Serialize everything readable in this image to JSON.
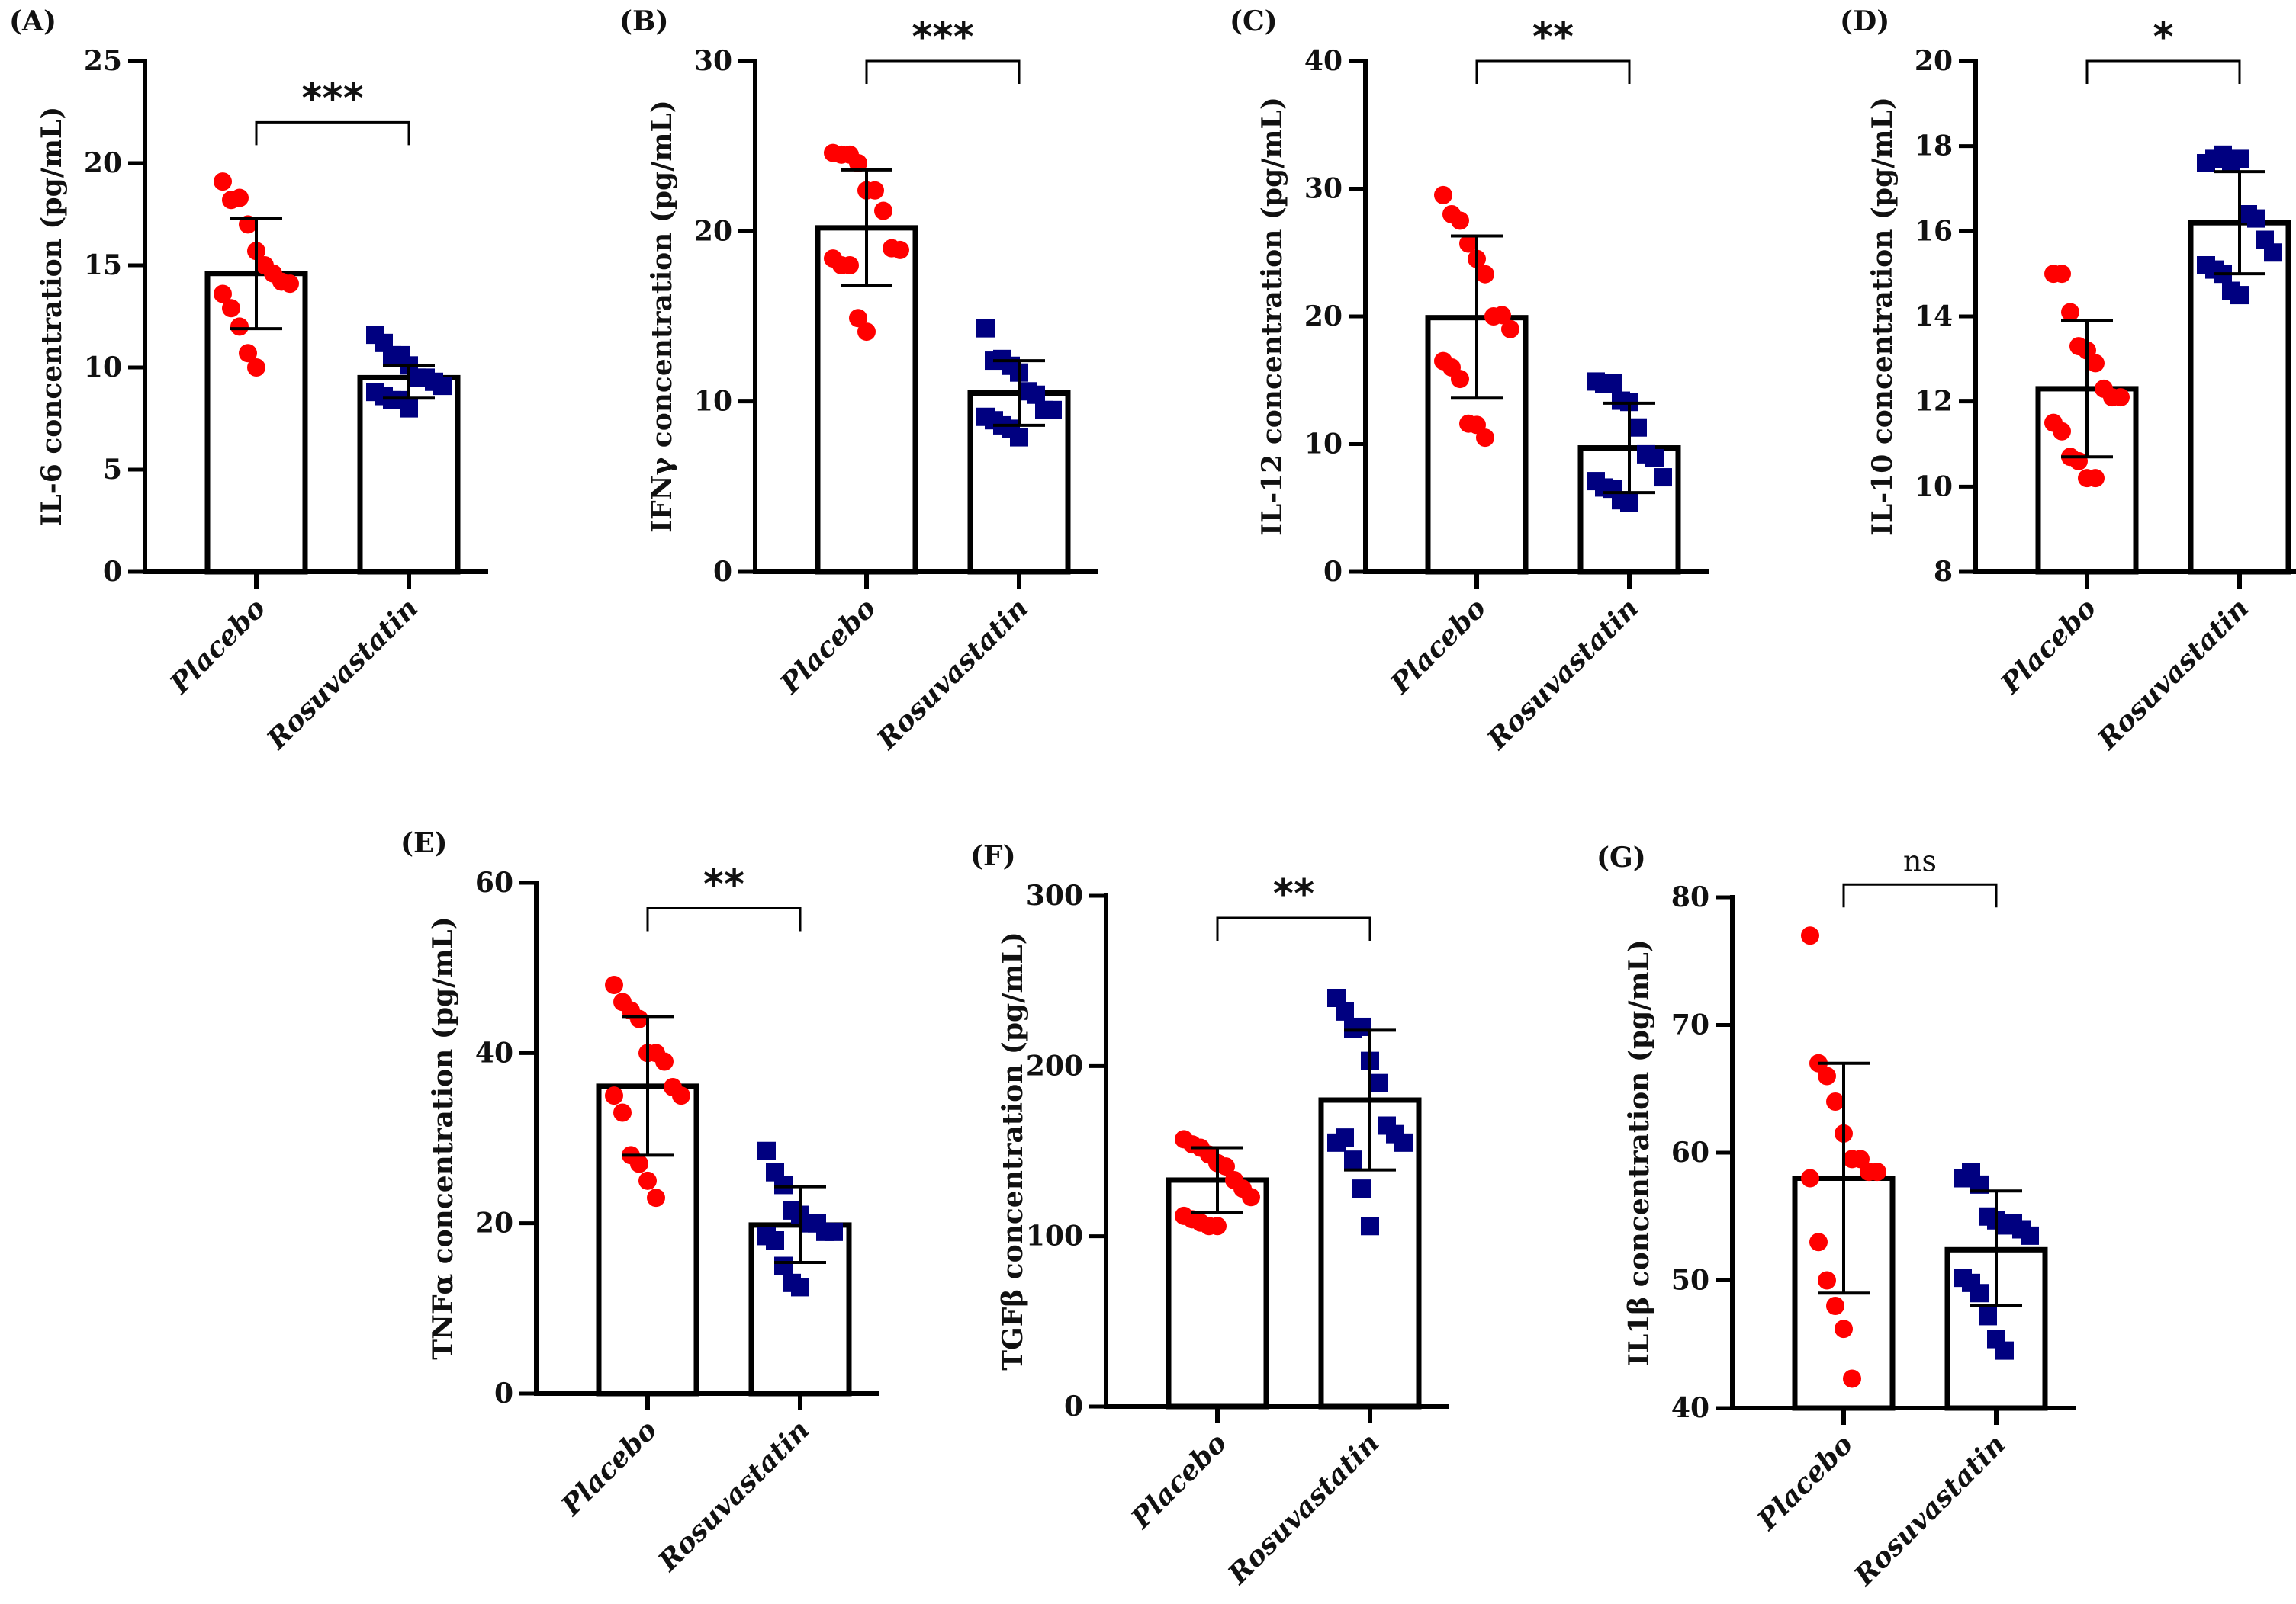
{
  "colors": {
    "placebo": "#ff0000",
    "rosuvastatin": "#000080",
    "axis": "#000000"
  },
  "chart_data": [
    {
      "type": "bar",
      "panel": "(A)",
      "ylabel": "IL-6 concentration (pg/mL)",
      "categories": [
        "Placebo",
        "Rosuvastatin"
      ],
      "ylim": [
        0,
        25
      ],
      "yticks": [
        "0",
        "5",
        "10",
        "15",
        "20",
        "25"
      ],
      "significance": "***",
      "series": [
        {
          "name": "Placebo",
          "mean": 14.6,
          "sd_low": 11.9,
          "sd_high": 17.3,
          "points": [
            19.1,
            18.2,
            18.3,
            17.0,
            15.7,
            15.0,
            14.6,
            14.2,
            14.1,
            13.6,
            12.9,
            12.0,
            10.7,
            10.0
          ]
        },
        {
          "name": "Rosuvastatin",
          "mean": 9.5,
          "sd_low": 8.5,
          "sd_high": 10.1,
          "points": [
            11.6,
            11.2,
            10.6,
            10.6,
            10.1,
            9.5,
            9.5,
            9.3,
            9.1,
            8.8,
            8.6,
            8.4,
            8.4,
            8.0
          ]
        }
      ]
    },
    {
      "type": "bar",
      "panel": "(B)",
      "ylabel": "IFNγ concentration (pg/mL)",
      "categories": [
        "Placebo",
        "Rosuvastatin"
      ],
      "ylim": [
        0,
        30
      ],
      "yticks": [
        "0",
        "10",
        "20",
        "30"
      ],
      "significance": "***",
      "series": [
        {
          "name": "Placebo",
          "mean": 20.2,
          "sd_low": 16.8,
          "sd_high": 23.6,
          "points": [
            24.6,
            24.5,
            24.5,
            24.0,
            22.4,
            22.4,
            21.2,
            19.0,
            18.9,
            18.4,
            18.0,
            18.0,
            14.9,
            14.1
          ]
        },
        {
          "name": "Rosuvastatin",
          "mean": 10.5,
          "sd_low": 8.6,
          "sd_high": 12.4,
          "points": [
            14.3,
            12.4,
            12.5,
            12.1,
            11.7,
            10.6,
            10.4,
            9.5,
            9.5,
            9.1,
            8.9,
            8.6,
            8.4,
            7.9
          ]
        }
      ]
    },
    {
      "type": "bar",
      "panel": "(C)",
      "ylabel": "IL-12 concentration (pg/mL)",
      "categories": [
        "Placebo",
        "Rosuvastatin"
      ],
      "ylim": [
        0,
        40
      ],
      "yticks": [
        "0",
        "10",
        "20",
        "30",
        "40"
      ],
      "significance": "**",
      "series": [
        {
          "name": "Placebo",
          "mean": 19.9,
          "sd_low": 13.6,
          "sd_high": 26.3,
          "points": [
            29.5,
            28.0,
            27.5,
            25.7,
            24.5,
            23.3,
            20.0,
            20.1,
            19.0,
            16.5,
            16.0,
            15.1,
            11.6,
            11.5,
            10.5
          ]
        },
        {
          "name": "Rosuvastatin",
          "mean": 9.7,
          "sd_low": 6.2,
          "sd_high": 13.2,
          "points": [
            14.9,
            14.7,
            14.8,
            13.4,
            13.3,
            11.3,
            9.2,
            8.9,
            7.4,
            7.1,
            6.6,
            6.5,
            5.6,
            5.4
          ]
        }
      ]
    },
    {
      "type": "bar",
      "panel": "(D)",
      "ylabel": "IL-10 concentration (pg/mL)",
      "categories": [
        "Placebo",
        "Rosuvastatin"
      ],
      "ylim": [
        8,
        20
      ],
      "yticks": [
        "8",
        "10",
        "12",
        "14",
        "16",
        "18",
        "20"
      ],
      "significance": "*",
      "series": [
        {
          "name": "Placebo",
          "mean": 12.3,
          "sd_low": 10.7,
          "sd_high": 13.9,
          "points": [
            15.0,
            15.0,
            14.1,
            13.3,
            13.2,
            12.9,
            12.3,
            12.1,
            12.1,
            11.5,
            11.3,
            10.7,
            10.6,
            10.2,
            10.2
          ]
        },
        {
          "name": "Rosuvastatin",
          "mean": 16.2,
          "sd_low": 15.0,
          "sd_high": 17.4,
          "points": [
            17.6,
            17.7,
            17.8,
            17.6,
            17.7,
            16.4,
            16.3,
            15.8,
            15.5,
            15.2,
            15.1,
            15.0,
            14.6,
            14.5
          ]
        }
      ]
    },
    {
      "type": "bar",
      "panel": "(E)",
      "ylabel": "TNFα concentration (pg/mL)",
      "categories": [
        "Placebo",
        "Rosuvastatin"
      ],
      "ylim": [
        0,
        60
      ],
      "yticks": [
        "0",
        "20",
        "40",
        "60"
      ],
      "significance": "**",
      "series": [
        {
          "name": "Placebo",
          "mean": 36.1,
          "sd_low": 28.0,
          "sd_high": 44.3,
          "points": [
            48,
            46,
            45,
            44,
            40,
            40,
            39,
            36,
            35,
            35,
            33,
            28,
            27,
            25,
            23
          ]
        },
        {
          "name": "Rosuvastatin",
          "mean": 19.8,
          "sd_low": 15.4,
          "sd_high": 24.3,
          "points": [
            28.5,
            26,
            24.5,
            21.5,
            21,
            20,
            20,
            19,
            19,
            18.5,
            18,
            15,
            13,
            12.5
          ]
        }
      ]
    },
    {
      "type": "bar",
      "panel": "(F)",
      "ylabel": "TGFβ concentration (pg/mL)",
      "categories": [
        "Placebo",
        "Rosuvastatin"
      ],
      "ylim": [
        0,
        300
      ],
      "yticks": [
        "0",
        "100",
        "200",
        "300"
      ],
      "significance": "**",
      "series": [
        {
          "name": "Placebo",
          "mean": 133,
          "sd_low": 114,
          "sd_high": 152,
          "points": [
            157,
            154,
            152,
            148,
            143,
            141,
            133,
            128,
            123,
            112,
            110,
            108,
            106,
            106
          ]
        },
        {
          "name": "Rosuvastatin",
          "mean": 180,
          "sd_low": 139,
          "sd_high": 221,
          "points": [
            240,
            232,
            222,
            223,
            203,
            190,
            165,
            160,
            155,
            155,
            158,
            145,
            128,
            106
          ]
        }
      ]
    },
    {
      "type": "bar",
      "panel": "(G)",
      "ylabel": "IL1β concentration (pg/mL)",
      "categories": [
        "Placebo",
        "Rosuvastatin"
      ],
      "ylim": [
        40,
        80
      ],
      "yticks": [
        "40",
        "50",
        "60",
        "70",
        "80"
      ],
      "significance": "ns",
      "series": [
        {
          "name": "Placebo",
          "mean": 58,
          "sd_low": 49,
          "sd_high": 67,
          "points": [
            77,
            67,
            66,
            64,
            61.5,
            59.5,
            59.5,
            58.5,
            58.5,
            58,
            53,
            50,
            48,
            46.2,
            42.3
          ]
        },
        {
          "name": "Rosuvastatin",
          "mean": 52.4,
          "sd_low": 48,
          "sd_high": 57,
          "points": [
            58,
            58.5,
            57.5,
            55,
            54.7,
            54.3,
            54.5,
            54,
            53.5,
            50.2,
            49.8,
            49,
            47.2,
            45.4,
            44.5
          ]
        }
      ]
    }
  ]
}
